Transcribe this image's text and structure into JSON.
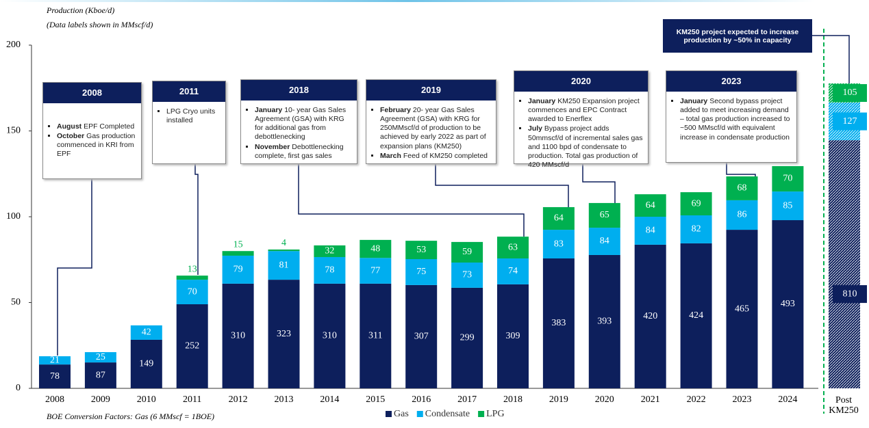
{
  "chart_data": {
    "type": "stacked_bar",
    "axis_label": "Production (Kboe/d)",
    "subtitle": "(Data labels shown in MMscf/d)",
    "footnote": "BOE Conversion Factors:  Gas (6 MMscf = 1BOE)",
    "categories": [
      "2008",
      "2009",
      "2010",
      "2011",
      "2012",
      "2013",
      "2014",
      "2015",
      "2016",
      "2017",
      "2018",
      "2019",
      "2020",
      "2021",
      "2022",
      "2023",
      "2024",
      "Post KM250"
    ],
    "ylim": [
      0,
      200
    ],
    "yticks": [
      0,
      50,
      100,
      150,
      200
    ],
    "series": [
      {
        "name": "Gas",
        "color": "#0d1f5c",
        "values": [
          13.9,
          15.1,
          28.3,
          49,
          61,
          63.3,
          61,
          61,
          60.2,
          58.6,
          60.6,
          75.7,
          77.7,
          83.7,
          84.5,
          92.4,
          98,
          144.6
        ],
        "data_labels": [
          78,
          87,
          149,
          252,
          310,
          323,
          310,
          311,
          307,
          299,
          309,
          383,
          393,
          420,
          424,
          465,
          493,
          810
        ]
      },
      {
        "name": "Condensate",
        "color": "#00aeef",
        "values": [
          4.8,
          6,
          8.4,
          14.3,
          16.3,
          16.7,
          15.5,
          15,
          15.1,
          14.7,
          15.1,
          16.7,
          15.9,
          16.3,
          16.3,
          17.2,
          16.7,
          21.9
        ],
        "data_labels": [
          21,
          25,
          42,
          70,
          79,
          81,
          78,
          77,
          75,
          73,
          74,
          83,
          84,
          84,
          82,
          86,
          85,
          127
        ]
      },
      {
        "name": "LPG",
        "color": "#00b050",
        "values": [
          null,
          null,
          null,
          2.4,
          2.7,
          0.9,
          6.8,
          10.5,
          10.7,
          12,
          12.7,
          13.2,
          14.4,
          13.1,
          13.5,
          13.9,
          14.8,
          11.2
        ],
        "data_labels": [
          null,
          null,
          null,
          13,
          15,
          4,
          32,
          48,
          53,
          59,
          63,
          64,
          65,
          64,
          69,
          68,
          70,
          105
        ]
      }
    ],
    "annotations": [
      {
        "year": "2008",
        "items": [
          {
            "bold": "August",
            "text": " EPF Completed"
          },
          {
            "bold": "October",
            "text": " Gas production commenced in KRI from EPF"
          }
        ]
      },
      {
        "year": "2011",
        "items": [
          {
            "bold": "",
            "text": "LPG Cryo units installed"
          }
        ]
      },
      {
        "year": "2018",
        "items": [
          {
            "bold": "January",
            "text": "  10- year Gas Sales Agreement (GSA) with KRG for additional gas from debottlenecking"
          },
          {
            "bold": "November",
            "text": " Debottlenecking complete, first gas sales"
          }
        ]
      },
      {
        "year": "2019",
        "items": [
          {
            "bold": "February",
            "text": "  20- year Gas Sales Agreement (GSA) with KRG for 250MMscf/d of production to be achieved by early 2022 as part of expansion plans (KM250)"
          },
          {
            "bold": "March",
            "text": " Feed of KM250 completed"
          }
        ]
      },
      {
        "year": "2020",
        "items": [
          {
            "bold": "January",
            "text": "  KM250 Expansion project commences and EPC Contract awarded to Enerflex"
          },
          {
            "bold": "July",
            "text": " Bypass project adds 50mmscf/d of incremental sales gas and 1100 bpd of condensate to production. Total gas production of 420 MMscf/d"
          }
        ]
      },
      {
        "year": "2023",
        "items": [
          {
            "bold": "January",
            "text": "  Second bypass project added to meet increasing demand – total gas production increased to ~500 MMscf/d with equivalent increase in condensate production"
          }
        ]
      }
    ],
    "callout": "KM250 project expected to increase production by ~50% in capacity"
  }
}
